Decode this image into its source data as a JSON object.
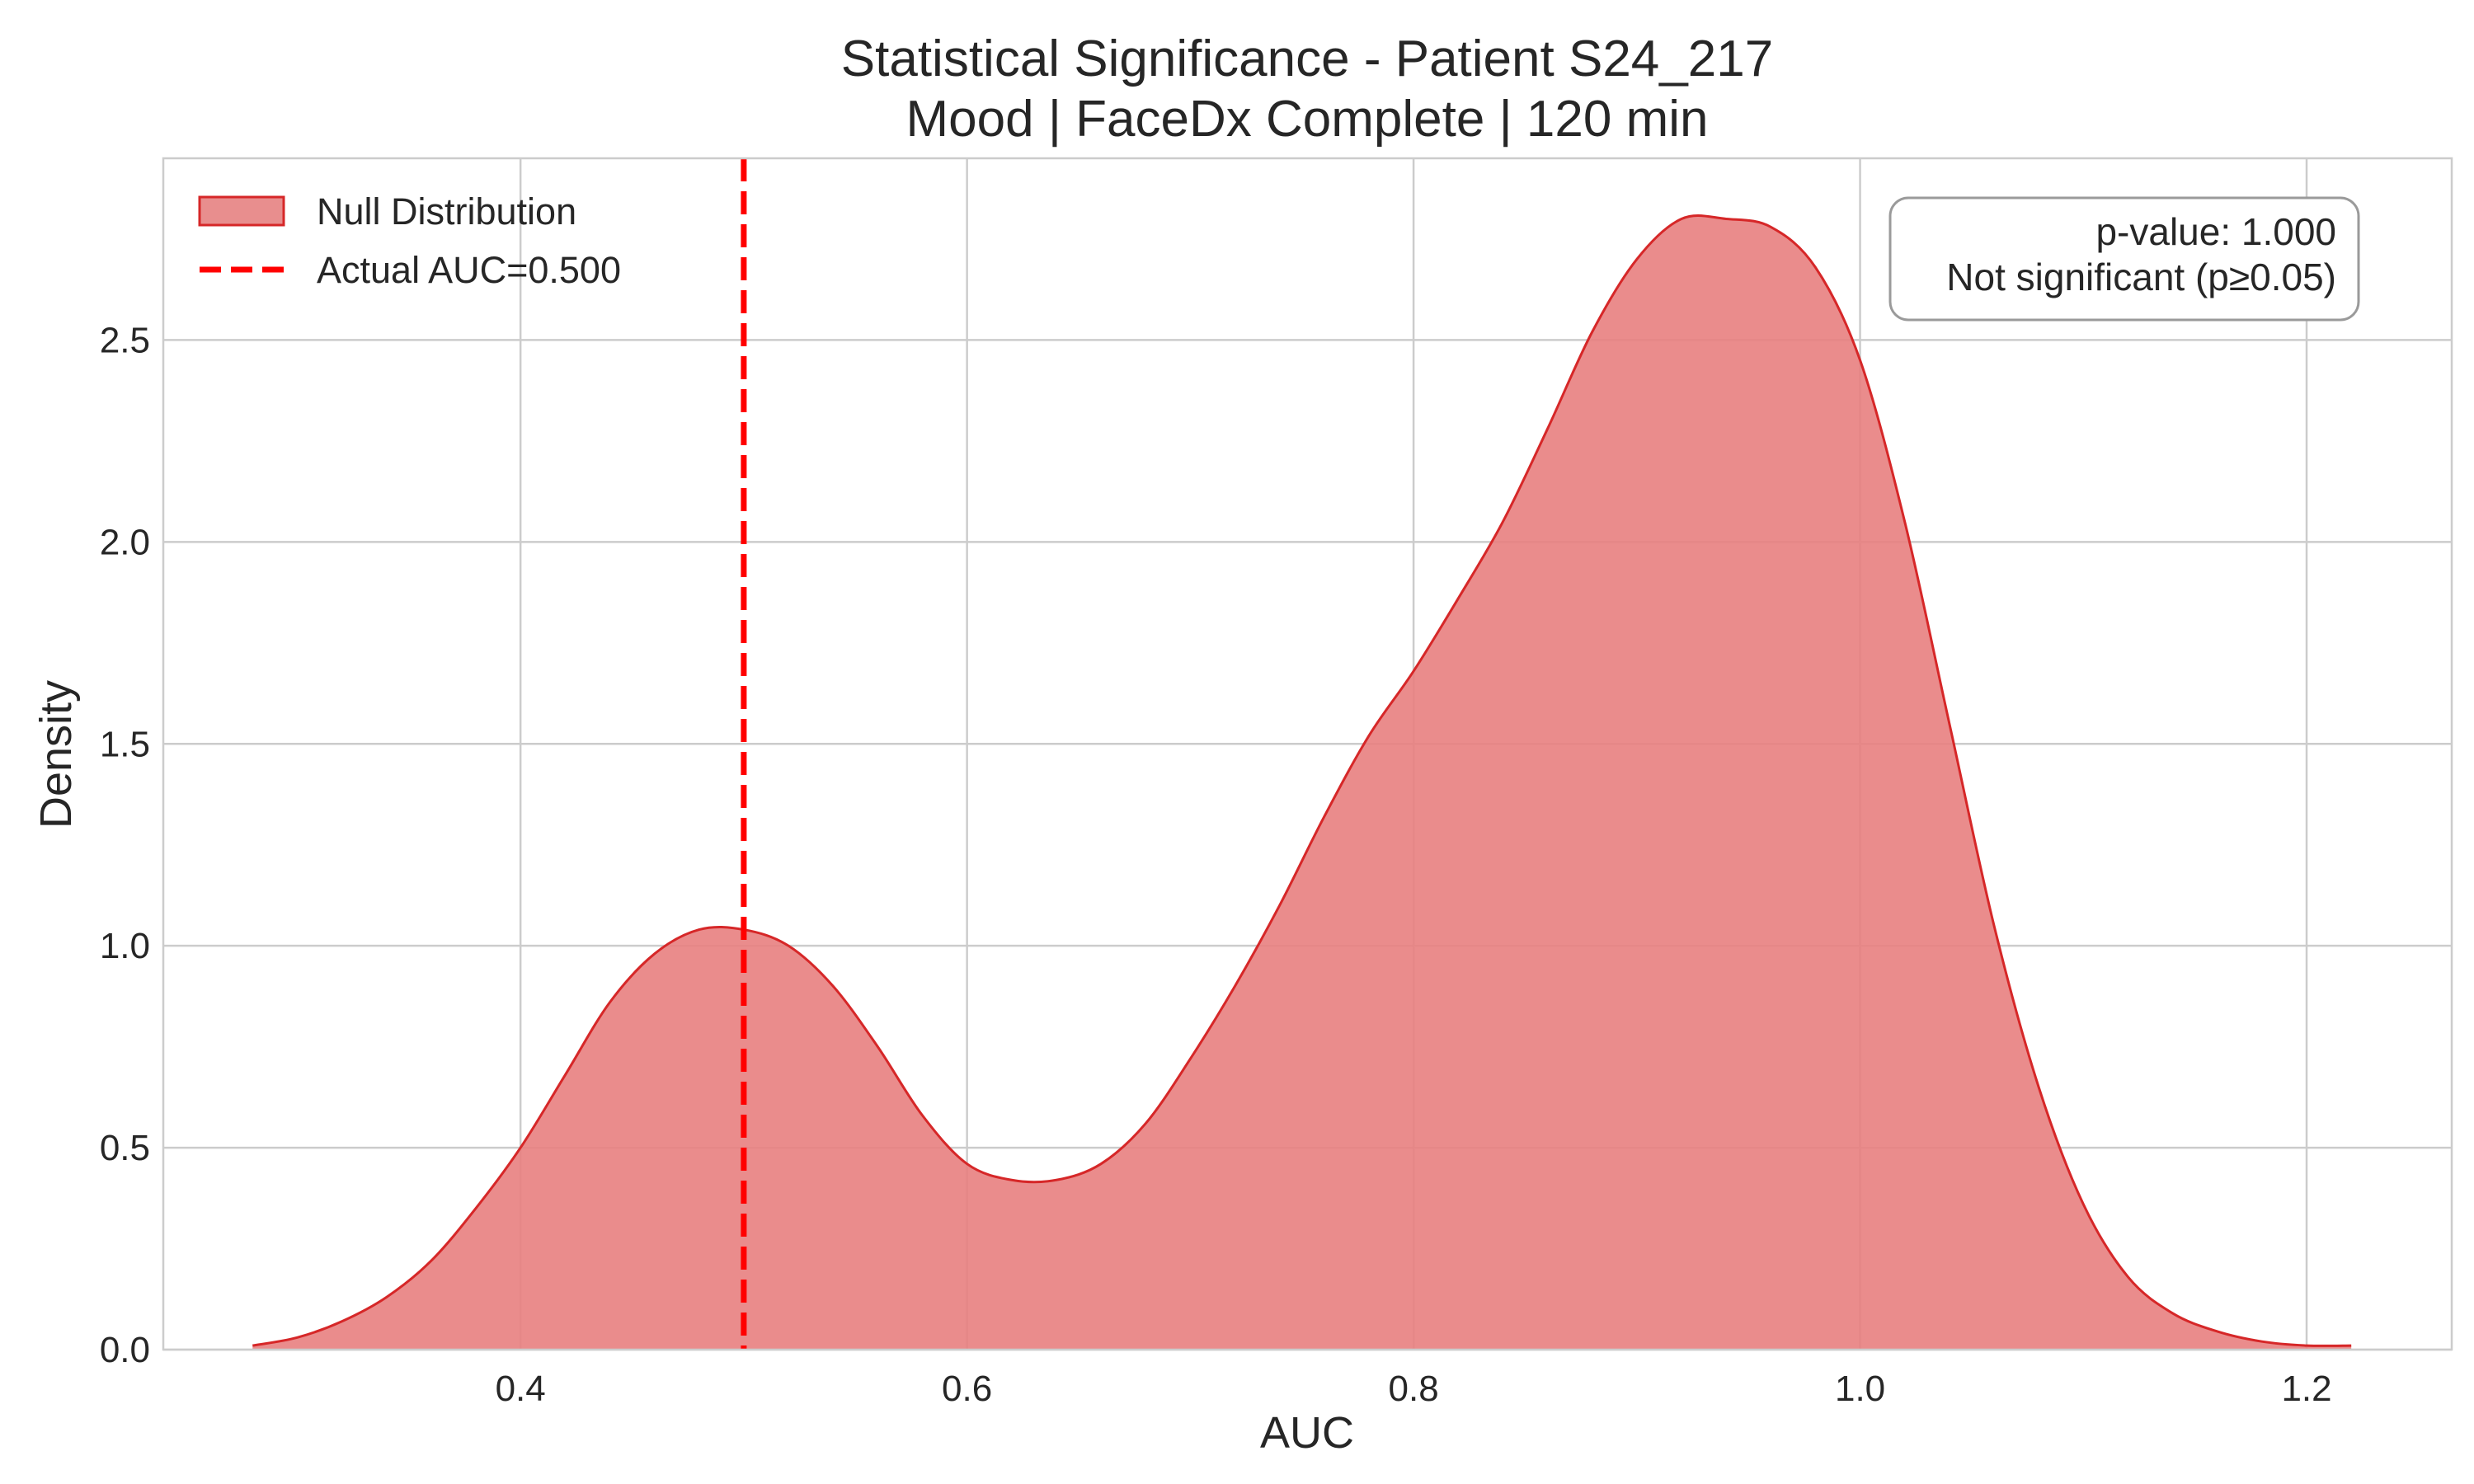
{
  "chart_data": {
    "type": "area",
    "title": "Statistical Significance - Patient S24_217",
    "subtitle": "Mood | FaceDx Complete | 120 min",
    "xlabel": "AUC",
    "ylabel": "Density",
    "xlim": [
      0.24,
      1.265
    ],
    "ylim": [
      0,
      2.95
    ],
    "x_ticks": [
      0.4,
      0.6,
      0.8,
      1.0,
      1.2
    ],
    "x_tick_labels": [
      "0.4",
      "0.6",
      "0.8",
      "1.0",
      "1.2"
    ],
    "y_ticks": [
      0.0,
      0.5,
      1.0,
      1.5,
      2.0,
      2.5
    ],
    "y_tick_labels": [
      "0.0",
      "0.5",
      "1.0",
      "1.5",
      "2.0",
      "2.5"
    ],
    "grid": true,
    "legend_position": "top-left",
    "series": [
      {
        "name": "Null Distribution",
        "color": "#d62728",
        "fill_color": "#e88080",
        "x": [
          0.28,
          0.3,
          0.32,
          0.34,
          0.36,
          0.38,
          0.4,
          0.42,
          0.44,
          0.46,
          0.48,
          0.5,
          0.52,
          0.54,
          0.56,
          0.58,
          0.6,
          0.62,
          0.64,
          0.66,
          0.68,
          0.7,
          0.72,
          0.74,
          0.76,
          0.78,
          0.8,
          0.82,
          0.84,
          0.86,
          0.88,
          0.9,
          0.92,
          0.94,
          0.96,
          0.98,
          1.0,
          1.02,
          1.04,
          1.06,
          1.08,
          1.1,
          1.12,
          1.14,
          1.16,
          1.18,
          1.2,
          1.22
        ],
        "y": [
          0.01,
          0.03,
          0.07,
          0.13,
          0.22,
          0.35,
          0.5,
          0.68,
          0.86,
          0.98,
          1.04,
          1.04,
          1.0,
          0.9,
          0.75,
          0.58,
          0.46,
          0.42,
          0.42,
          0.46,
          0.56,
          0.72,
          0.9,
          1.1,
          1.32,
          1.52,
          1.68,
          1.86,
          2.05,
          2.28,
          2.52,
          2.7,
          2.8,
          2.8,
          2.78,
          2.68,
          2.45,
          2.05,
          1.55,
          1.05,
          0.65,
          0.36,
          0.18,
          0.09,
          0.045,
          0.02,
          0.01,
          0.01
        ]
      }
    ],
    "reference_line": {
      "name": "Actual AUC=0.500",
      "x": 0.5,
      "color": "#ff0000",
      "style": "dashed"
    },
    "annotation": {
      "line1": "p-value: 1.000",
      "line2": "Not significant (p≥0.05)",
      "position": "top-right"
    }
  }
}
